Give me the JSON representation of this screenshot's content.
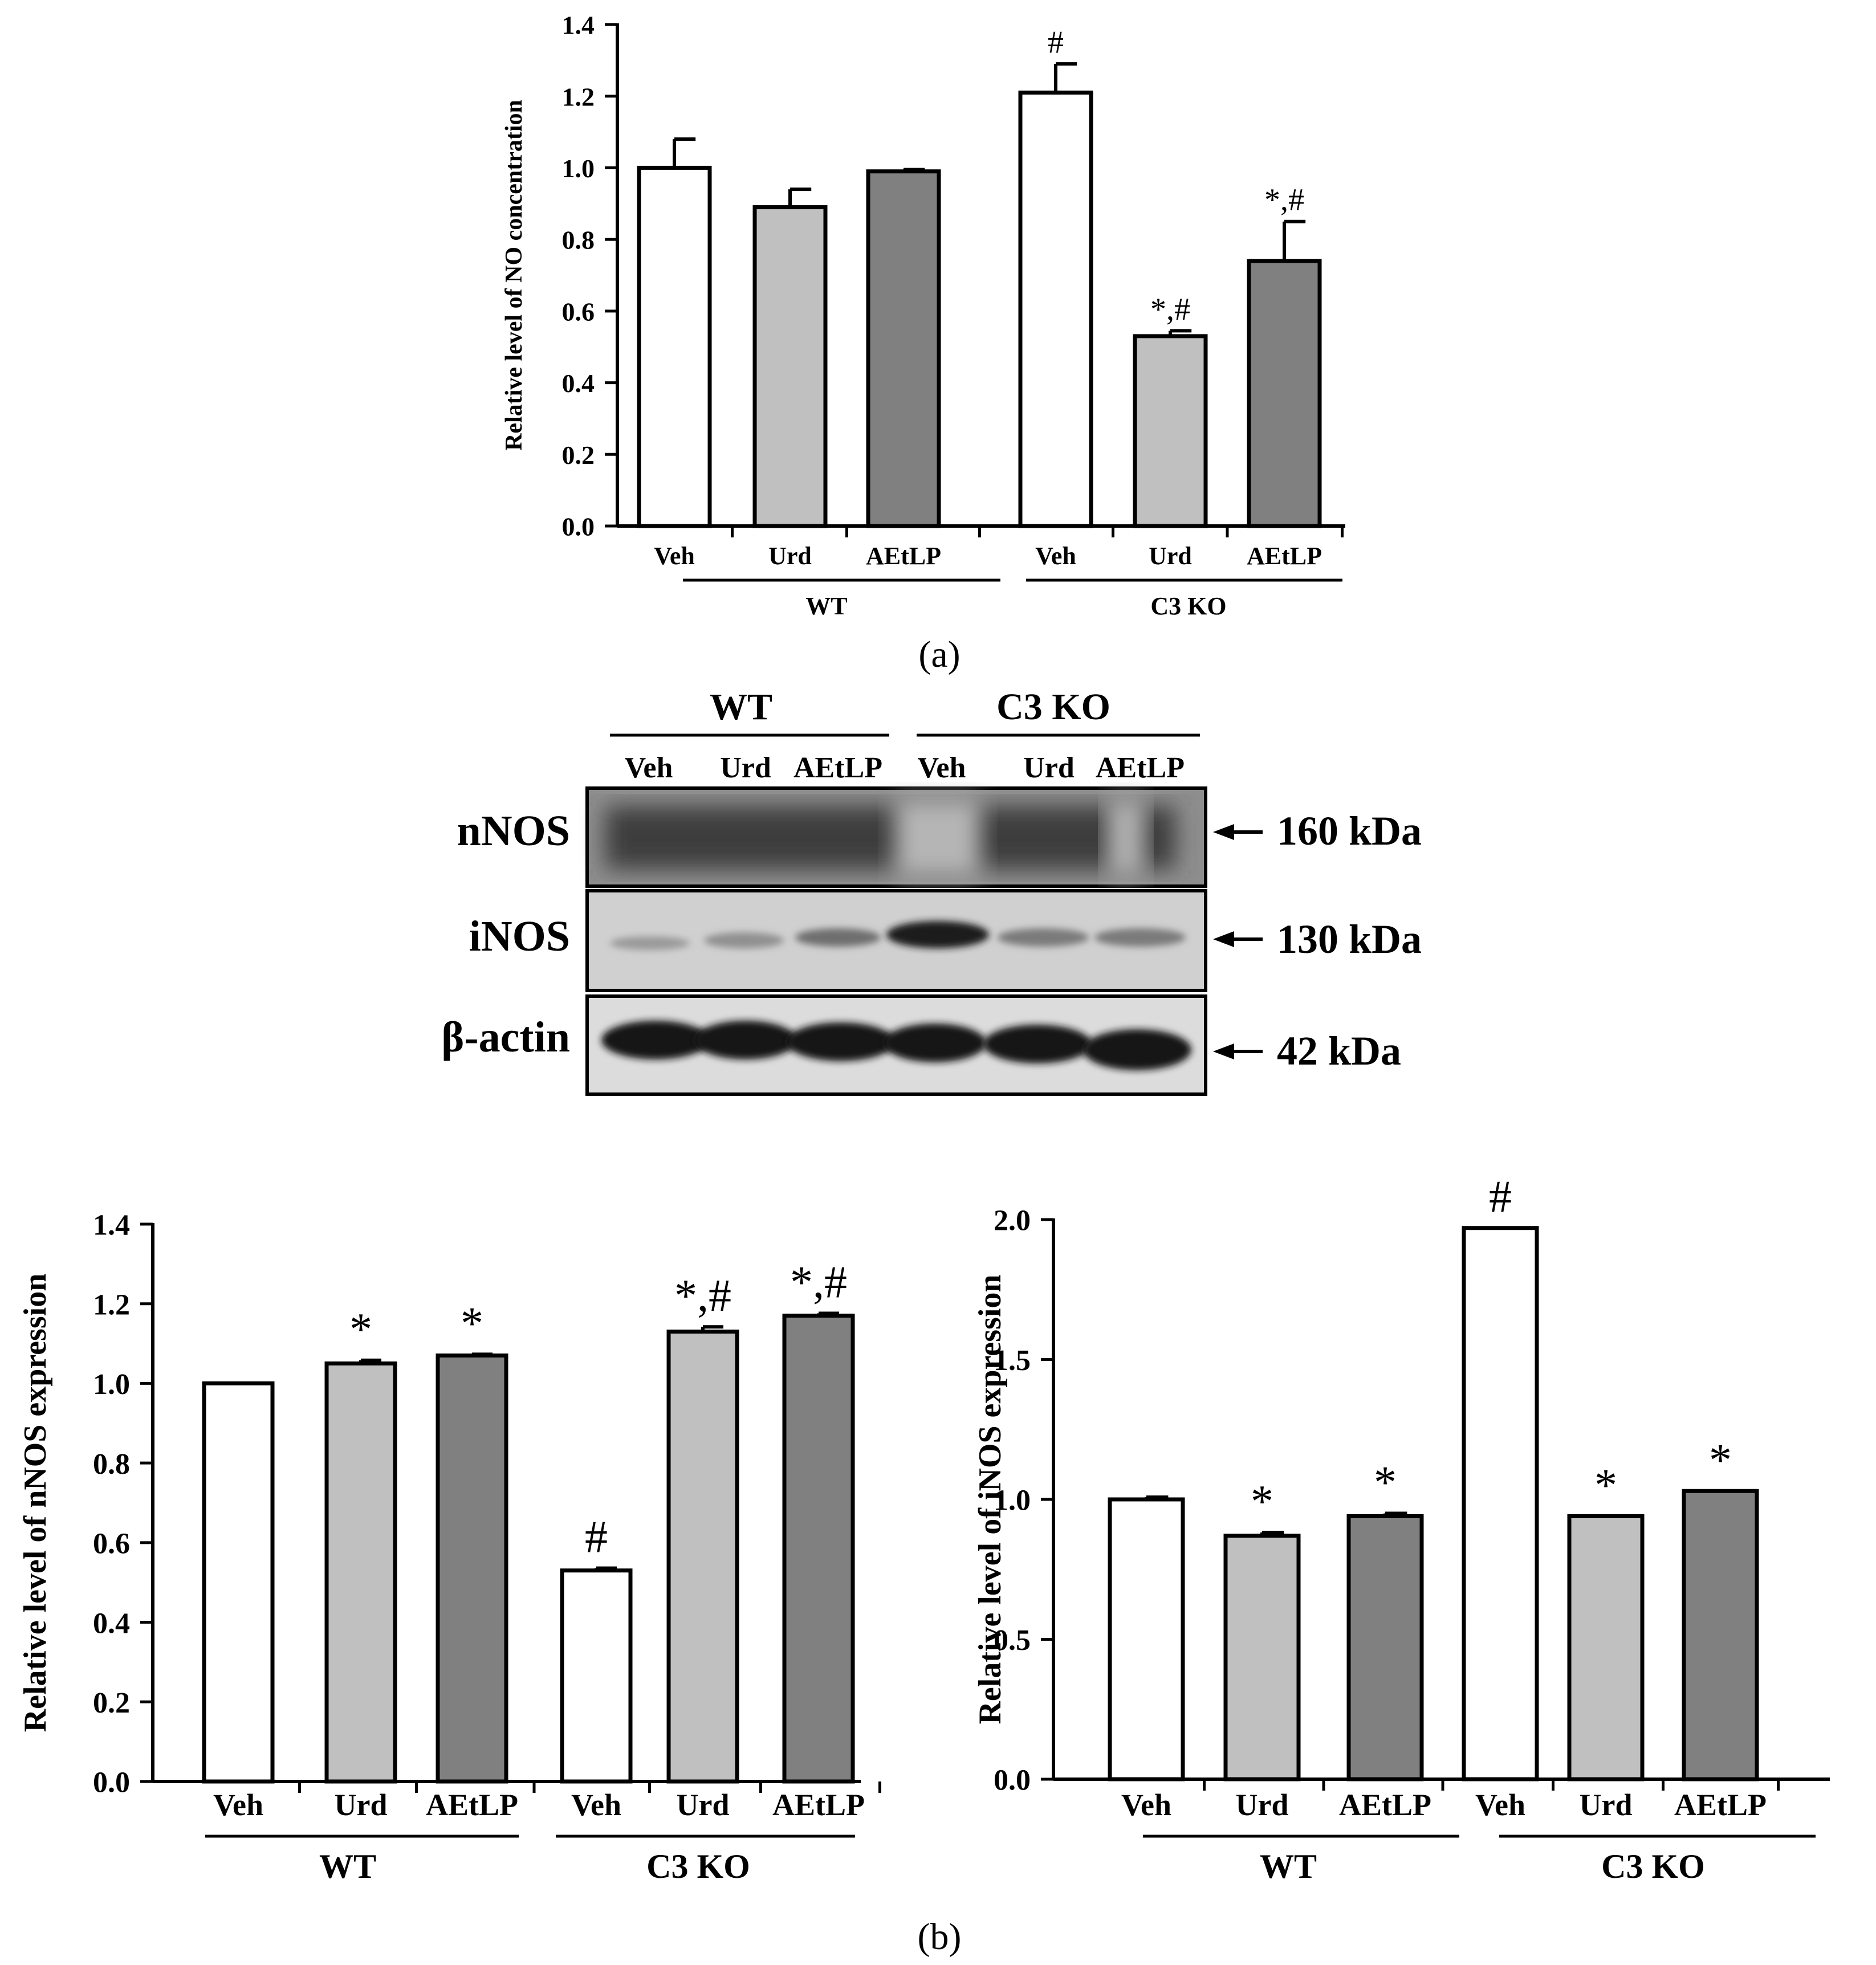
{
  "colors": {
    "veh": "#ffffff",
    "urd": "#c0c0c0",
    "aetlp": "#808080",
    "stroke": "#000000"
  },
  "chart_data": [
    {
      "type": "bar",
      "panel_label": "a",
      "ylabel": "Relative level of NO concentration",
      "ylim": [
        0,
        1.4
      ],
      "yticks": [
        "0.0",
        "0.2",
        "0.4",
        "0.6",
        "0.8",
        "1.0",
        "1.2",
        "1.4"
      ],
      "categories": [
        "Veh",
        "Urd",
        "AEtLP",
        "Veh",
        "Urd",
        "AEtLP"
      ],
      "groups": [
        "WT",
        "C3 KO"
      ],
      "values": [
        1.0,
        0.89,
        0.99,
        1.21,
        0.53,
        0.74
      ],
      "errors": [
        0.08,
        0.05,
        0.005,
        0.08,
        0.015,
        0.11
      ],
      "annotations": [
        "",
        "",
        "",
        "#",
        "*,#",
        "*,#"
      ]
    },
    {
      "type": "bar",
      "panel_label": "b-left",
      "ylabel": "Relative level of  nNOS expression",
      "ylim": [
        0,
        1.4
      ],
      "yticks": [
        "0.0",
        "0.2",
        "0.4",
        "0.6",
        "0.8",
        "1.0",
        "1.2",
        "1.4"
      ],
      "categories": [
        "Veh",
        "Urd",
        "AEtLP",
        "Veh",
        "Urd",
        "AEtLP"
      ],
      "groups": [
        "WT",
        "C3 KO"
      ],
      "values": [
        1.0,
        1.05,
        1.07,
        0.53,
        1.13,
        1.17
      ],
      "errors": [
        0.0,
        0.008,
        0.003,
        0.006,
        0.012,
        0.006
      ],
      "annotations": [
        "",
        "*",
        "*",
        "#",
        "*,#",
        "*,#"
      ]
    },
    {
      "type": "bar",
      "panel_label": "b-right",
      "ylabel": "Relative level of iNOS expression",
      "ylim": [
        0,
        2.0
      ],
      "yticks": [
        "0.0",
        "0.5",
        "1.0",
        "1.5",
        "2.0"
      ],
      "categories": [
        "Veh",
        "Urd",
        "AEtLP",
        "Veh",
        "Urd",
        "AEtLP"
      ],
      "groups": [
        "WT",
        "C3 KO"
      ],
      "values": [
        1.0,
        0.87,
        0.94,
        1.97,
        0.94,
        1.03
      ],
      "errors": [
        0.008,
        0.012,
        0.01,
        0.0,
        0.0,
        0.0
      ],
      "annotations": [
        "",
        "*",
        "*",
        "#",
        "*",
        "*"
      ]
    }
  ],
  "blot": {
    "groups": [
      "WT",
      "C3 KO"
    ],
    "lanes": [
      "Veh",
      "Urd",
      "AEtLP",
      "Veh",
      "Urd",
      "AEtLP"
    ],
    "rows": [
      {
        "label": "nNOS",
        "size": "160 kDa"
      },
      {
        "label": "iNOS",
        "size": "130 kDa"
      },
      {
        "label": "β-actin",
        "size": "42 kDa"
      }
    ]
  },
  "captions": {
    "a": "(a)",
    "b": "(b)"
  }
}
